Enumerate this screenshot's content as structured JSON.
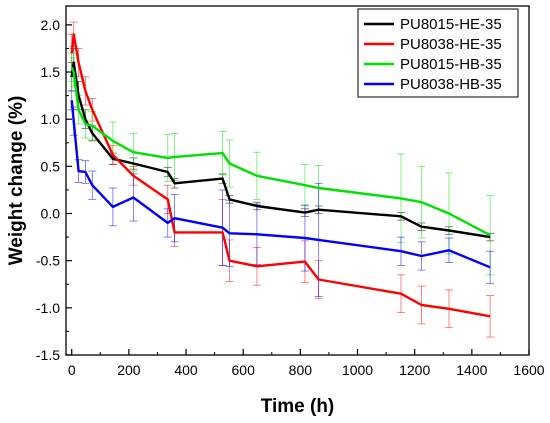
{
  "chart_data": {
    "type": "line",
    "xlabel": "Time (h)",
    "ylabel": "Weight change (%)",
    "xlim": [
      -20,
      1600
    ],
    "ylim": [
      -1.5,
      2.2
    ],
    "xticks": [
      0,
      200,
      400,
      600,
      800,
      1000,
      1200,
      1400,
      1600
    ],
    "yticks": [
      -1.5,
      -1.0,
      -0.5,
      0.0,
      0.5,
      1.0,
      1.5,
      2.0
    ],
    "xtick_labels": [
      "0",
      "200",
      "400",
      "600",
      "800",
      "1000",
      "1200",
      "1400",
      "1600"
    ],
    "ytick_labels": [
      "-1.5",
      "-1.0",
      "-0.5",
      "0.0",
      "0.5",
      "1.0",
      "1.5",
      "2.0"
    ],
    "grid": false,
    "legend_position": "top-right",
    "series": [
      {
        "name": "PU8015-HE-35",
        "color": "#000000",
        "x": [
          0,
          7,
          24,
          48,
          72,
          144,
          216,
          336,
          360,
          528,
          552,
          648,
          816,
          864,
          1152,
          1224,
          1320,
          1464
        ],
        "y": [
          1.45,
          1.6,
          1.25,
          1.0,
          0.85,
          0.58,
          0.53,
          0.44,
          0.32,
          0.37,
          0.15,
          0.08,
          0.01,
          0.04,
          -0.03,
          -0.14,
          -0.18,
          -0.25
        ],
        "err": [
          0.15,
          0.15,
          0.15,
          0.1,
          0.08,
          0.06,
          0.06,
          0.05,
          0.05,
          0.05,
          0.04,
          0.04,
          0.04,
          0.04,
          0.04,
          0.04,
          0.04,
          0.04
        ]
      },
      {
        "name": "PU8038-HE-35",
        "color": "#ff0000",
        "x": [
          0,
          7,
          24,
          48,
          72,
          144,
          216,
          336,
          360,
          528,
          552,
          648,
          816,
          864,
          1152,
          1224,
          1320,
          1464
        ],
        "y": [
          1.7,
          1.9,
          1.6,
          1.3,
          1.1,
          0.62,
          0.4,
          0.15,
          -0.2,
          -0.2,
          -0.5,
          -0.56,
          -0.51,
          -0.7,
          -0.85,
          -0.97,
          -1.01,
          -1.09
        ],
        "err": [
          0.2,
          0.13,
          0.15,
          0.15,
          0.12,
          0.1,
          0.1,
          0.15,
          0.15,
          0.35,
          0.22,
          0.2,
          0.22,
          0.2,
          0.2,
          0.2,
          0.2,
          0.22
        ]
      },
      {
        "name": "PU8015-HB-35",
        "color": "#00e000",
        "x": [
          0,
          7,
          24,
          48,
          72,
          144,
          216,
          336,
          360,
          528,
          552,
          648,
          816,
          864,
          1152,
          1224,
          1320,
          1464
        ],
        "y": [
          1.55,
          1.5,
          1.1,
          0.95,
          0.93,
          0.77,
          0.65,
          0.59,
          0.6,
          0.64,
          0.53,
          0.4,
          0.3,
          0.27,
          0.16,
          0.12,
          0.0,
          -0.23
        ],
        "err": [
          0.15,
          0.15,
          0.15,
          0.15,
          0.15,
          0.2,
          0.2,
          0.25,
          0.25,
          0.23,
          0.25,
          0.25,
          0.22,
          0.24,
          0.47,
          0.38,
          0.43,
          0.42
        ]
      },
      {
        "name": "PU8038-HB-35",
        "color": "#0000ff",
        "x": [
          0,
          7,
          24,
          48,
          72,
          144,
          216,
          336,
          360,
          528,
          552,
          648,
          816,
          864,
          1152,
          1224,
          1320,
          1464
        ],
        "y": [
          1.2,
          0.98,
          0.45,
          0.44,
          0.3,
          0.07,
          0.17,
          -0.1,
          -0.05,
          -0.15,
          -0.21,
          -0.22,
          -0.26,
          -0.28,
          -0.4,
          -0.45,
          -0.39,
          -0.57
        ],
        "err": [
          0.1,
          0.15,
          0.12,
          0.12,
          0.15,
          0.2,
          0.25,
          0.15,
          0.25,
          0.4,
          0.35,
          0.32,
          0.35,
          0.6,
          0.15,
          0.15,
          0.13,
          0.17
        ]
      }
    ]
  }
}
